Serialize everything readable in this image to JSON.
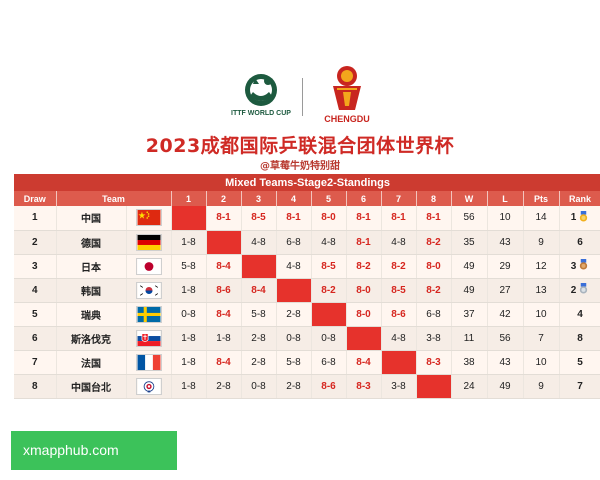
{
  "logos": {
    "ittf_text": "ITTF WORLD CUP",
    "chengdu_text": "CHENGDU"
  },
  "title": "2023成都国际乒联混合团体世界杯",
  "subtitle": "@草莓牛奶特别甜",
  "table": {
    "caption": "Mixed Teams-Stage2-Standings",
    "headers": {
      "draw": "Draw",
      "team": "Team",
      "c1": "1",
      "c2": "2",
      "c3": "3",
      "c4": "4",
      "c5": "5",
      "c6": "6",
      "c7": "7",
      "c8": "8",
      "w": "W",
      "l": "L",
      "pts": "Pts",
      "rank": "Rank"
    },
    "rows": [
      {
        "draw": "1",
        "team": "中国",
        "flag": "china-flag",
        "r": [
          "",
          "8-1",
          "8-5",
          "8-1",
          "8-0",
          "8-1",
          "8-1",
          "8-1"
        ],
        "w": "56",
        "l": "10",
        "pts": "14",
        "rank": "1",
        "medal": "gold"
      },
      {
        "draw": "2",
        "team": "德国",
        "flag": "germany-flag",
        "r": [
          "1-8",
          "",
          "4-8",
          "6-8",
          "4-8",
          "8-1",
          "4-8",
          "8-2"
        ],
        "w": "35",
        "l": "43",
        "pts": "9",
        "rank": "6",
        "medal": ""
      },
      {
        "draw": "3",
        "team": "日本",
        "flag": "japan-flag",
        "r": [
          "5-8",
          "8-4",
          "",
          "4-8",
          "8-5",
          "8-2",
          "8-2",
          "8-0"
        ],
        "w": "49",
        "l": "29",
        "pts": "12",
        "rank": "3",
        "medal": "bronze"
      },
      {
        "draw": "4",
        "team": "韩国",
        "flag": "korea-flag",
        "r": [
          "1-8",
          "8-6",
          "8-4",
          "",
          "8-2",
          "8-0",
          "8-5",
          "8-2"
        ],
        "w": "49",
        "l": "27",
        "pts": "13",
        "rank": "2",
        "medal": "silver"
      },
      {
        "draw": "5",
        "team": "瑞典",
        "flag": "sweden-flag",
        "r": [
          "0-8",
          "8-4",
          "5-8",
          "2-8",
          "",
          "8-0",
          "8-6",
          "6-8"
        ],
        "w": "37",
        "l": "42",
        "pts": "10",
        "rank": "4",
        "medal": ""
      },
      {
        "draw": "6",
        "team": "斯洛伐克",
        "flag": "slovakia-flag",
        "r": [
          "1-8",
          "1-8",
          "2-8",
          "0-8",
          "0-8",
          "",
          "4-8",
          "3-8"
        ],
        "w": "11",
        "l": "56",
        "pts": "7",
        "rank": "8",
        "medal": ""
      },
      {
        "draw": "7",
        "team": "法国",
        "flag": "france-flag",
        "r": [
          "1-8",
          "8-4",
          "2-8",
          "5-8",
          "6-8",
          "8-4",
          "",
          "8-3"
        ],
        "w": "38",
        "l": "43",
        "pts": "10",
        "rank": "5",
        "medal": ""
      },
      {
        "draw": "8",
        "team": "中国台北",
        "flag": "chinese-taipei-flag",
        "r": [
          "1-8",
          "2-8",
          "0-8",
          "2-8",
          "8-6",
          "8-3",
          "3-8",
          ""
        ],
        "w": "24",
        "l": "49",
        "pts": "9",
        "rank": "7",
        "medal": ""
      }
    ]
  },
  "colors": {
    "title_red": "#cf2a25",
    "caption_red": "#cc3b30",
    "header_red": "#dd5b4d",
    "self_cell_red": "#e6322c",
    "win_text_red": "#d6261f",
    "watermark_green": "#3cc25a"
  },
  "watermark": "xmapphub.com"
}
